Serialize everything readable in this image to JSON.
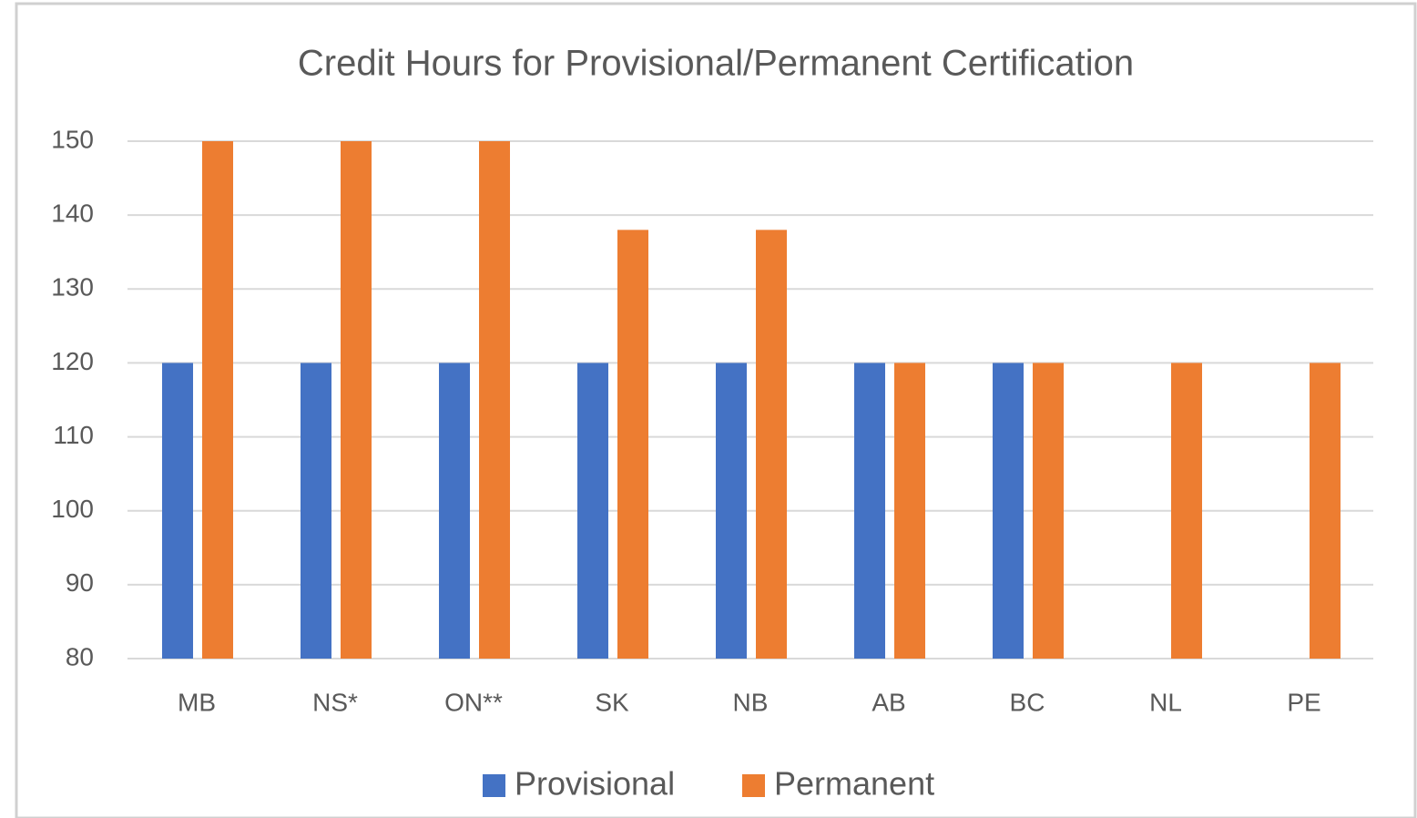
{
  "chart_data": {
    "type": "bar",
    "title": "Credit Hours for Provisional/Permanent Certification",
    "categories": [
      "MB",
      "NS*",
      "ON**",
      "SK",
      "NB",
      "AB",
      "BC",
      "NL",
      "PE"
    ],
    "series": [
      {
        "name": "Provisional",
        "color": "#4472c4",
        "values": [
          120,
          120,
          120,
          120,
          120,
          120,
          120,
          null,
          null
        ]
      },
      {
        "name": "Permanent",
        "color": "#ed7d31",
        "values": [
          150,
          150,
          150,
          138,
          138,
          120,
          120,
          120,
          120
        ]
      }
    ],
    "ylim": [
      80,
      150
    ],
    "yticks": [
      80,
      90,
      100,
      110,
      120,
      130,
      140,
      150
    ],
    "grid": true,
    "legend": "bottom"
  }
}
